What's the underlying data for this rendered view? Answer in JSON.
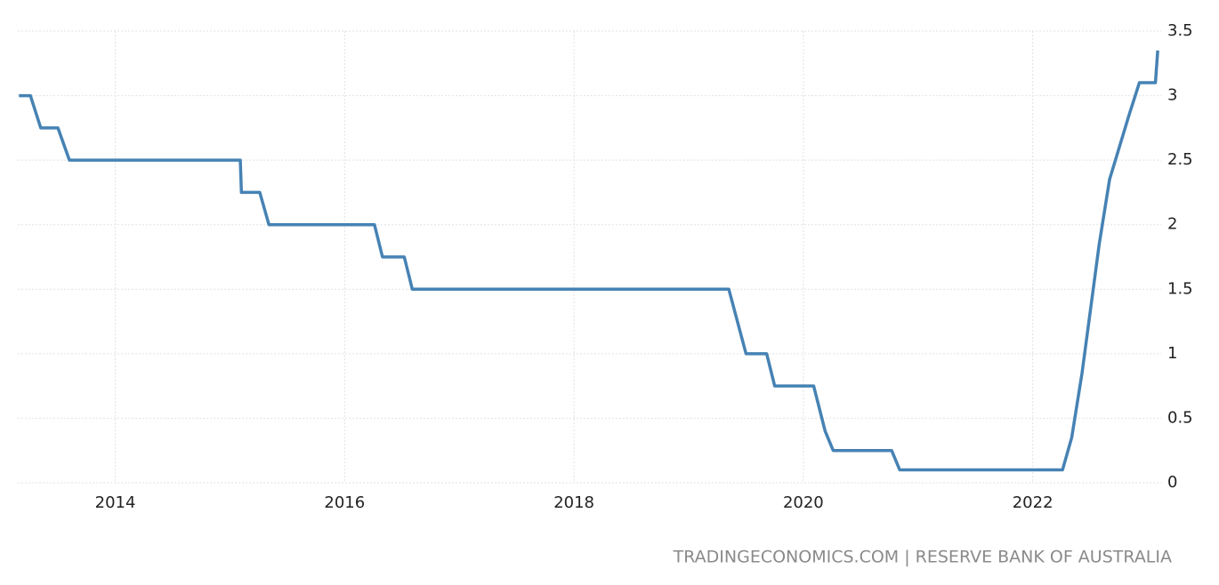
{
  "chart_data": {
    "type": "line",
    "source": "TRADINGECONOMICS.COM | RESERVE BANK OF AUSTRALIA",
    "x": [
      2013.16,
      2013.26,
      2013.35,
      2013.5,
      2013.6,
      2015.09,
      2015.1,
      2015.26,
      2015.34,
      2016.26,
      2016.33,
      2016.52,
      2016.59,
      2019.35,
      2019.5,
      2019.68,
      2019.75,
      2020.09,
      2020.19,
      2020.26,
      2020.77,
      2020.84,
      2022.26,
      2022.34,
      2022.43,
      2022.58,
      2022.67,
      2022.84,
      2022.93,
      2023.07,
      2023.09
    ],
    "series": [
      {
        "color": "#4682b4",
        "values": [
          3.0,
          3.0,
          2.75,
          2.75,
          2.5,
          2.5,
          2.25,
          2.25,
          2.0,
          2.0,
          1.75,
          1.75,
          1.5,
          1.5,
          1.0,
          1.0,
          0.75,
          0.75,
          0.4,
          0.25,
          0.25,
          0.1,
          0.1,
          0.35,
          0.85,
          1.85,
          2.35,
          2.85,
          3.1,
          3.1,
          3.35
        ]
      }
    ],
    "xlim": [
      2013.15,
      2023.12
    ],
    "xticks": [
      2014,
      2016,
      2018,
      2020,
      2022
    ],
    "ylim": [
      0,
      3.5
    ],
    "yticks": [
      0,
      0.5,
      1,
      1.5,
      2,
      2.5,
      3,
      3.5
    ],
    "grid": true,
    "y_axis_side": "right"
  }
}
